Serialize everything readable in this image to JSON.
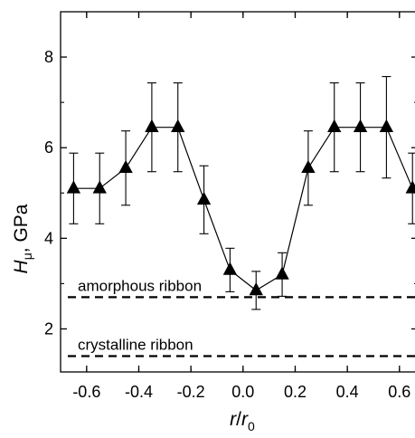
{
  "chart_data": {
    "type": "scatter",
    "xlabel": "r/r0",
    "xlabel_parts": {
      "main": "r",
      "slash": "/",
      "base": "r",
      "sub": "0"
    },
    "ylabel": "Hμ, GPa",
    "ylabel_parts": {
      "main": "H",
      "sub": "μ",
      "rest": ", GPa"
    },
    "xlim": [
      -0.7,
      0.67
    ],
    "ylim": [
      1.05,
      9.0
    ],
    "x_ticks": [
      -0.6,
      -0.4,
      -0.2,
      0.0,
      0.2,
      0.4,
      0.6
    ],
    "x_tick_labels": [
      "-0.6",
      "-0.4",
      "-0.2",
      "0.0",
      "0.2",
      "0.4",
      "0.6"
    ],
    "y_ticks": [
      2,
      4,
      6,
      8
    ],
    "y_tick_labels": [
      "2",
      "4",
      "6",
      "8"
    ],
    "grid": false,
    "marker": "filled-triangle",
    "series": [
      {
        "x": [
          -0.65,
          -0.55,
          -0.45,
          -0.35,
          -0.25,
          -0.15,
          -0.05,
          0.05,
          0.15,
          0.25,
          0.35,
          0.45,
          0.55,
          0.65
        ],
        "y": [
          5.1,
          5.1,
          5.55,
          6.45,
          6.45,
          4.85,
          3.3,
          2.85,
          3.2,
          5.55,
          6.45,
          6.45,
          6.45,
          5.1
        ],
        "error": [
          0.78,
          0.78,
          0.82,
          0.98,
          0.98,
          0.75,
          0.48,
          0.42,
          0.48,
          0.82,
          0.98,
          0.98,
          1.12,
          0.78
        ]
      }
    ],
    "reference_lines": [
      {
        "y": 2.7,
        "label": "amorphous ribbon",
        "style": "dashed"
      },
      {
        "y": 1.4,
        "label": "crystalline ribbon",
        "style": "dashed"
      }
    ]
  }
}
